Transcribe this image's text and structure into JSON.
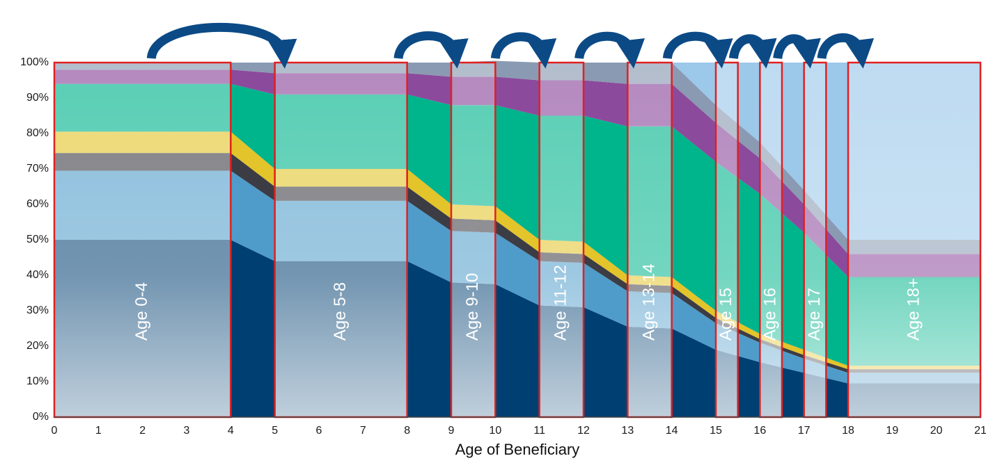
{
  "chart_data": {
    "type": "area",
    "title": "",
    "xlabel": "Age of Beneficiary",
    "ylabel": "",
    "xlim": [
      0,
      21
    ],
    "ylim": [
      0,
      100
    ],
    "x_ticks": [
      "0",
      "1",
      "2",
      "3",
      "4",
      "5",
      "6",
      "7",
      "8",
      "9",
      "10",
      "11",
      "12",
      "13",
      "14",
      "15",
      "16",
      "17",
      "18",
      "19",
      "20",
      "21"
    ],
    "y_ticks": [
      "0%",
      "10%",
      "20%",
      "30%",
      "40%",
      "50%",
      "60%",
      "70%",
      "80%",
      "90%",
      "100%"
    ],
    "grid": false,
    "stacked": true,
    "x": [
      0,
      4,
      5,
      8,
      9,
      10,
      11,
      12,
      13,
      14,
      15,
      16,
      17,
      18,
      21
    ],
    "series": [
      {
        "color": "#003f72",
        "values": [
          50,
          50,
          44,
          44,
          38,
          37.5,
          31.5,
          31,
          25.5,
          25,
          19,
          15.5,
          12.5,
          9.5,
          9.5
        ]
      },
      {
        "color": "#4f9cca",
        "values": [
          19.5,
          19.5,
          17,
          17,
          14.5,
          14.5,
          12.5,
          12.5,
          10,
          10,
          7.5,
          5.5,
          4,
          3,
          3
        ]
      },
      {
        "color": "#3c3c44",
        "values": [
          5,
          5,
          4,
          4,
          3.5,
          3.5,
          2.5,
          2.5,
          2,
          2,
          1.5,
          1,
          1,
          1,
          1
        ]
      },
      {
        "color": "#e3c42a",
        "values": [
          6,
          6,
          5,
          5,
          4,
          4,
          3.5,
          3.5,
          2.5,
          2.5,
          2,
          1.5,
          1.5,
          1,
          1
        ]
      },
      {
        "color": "#00b48c",
        "values": [
          13.5,
          13.5,
          21,
          21,
          28,
          28.5,
          35,
          35.5,
          42,
          42.5,
          42,
          39.5,
          33,
          25,
          25
        ]
      },
      {
        "color": "#8c4a9c",
        "values": [
          4,
          4,
          6,
          6,
          8,
          8,
          10,
          10,
          12,
          12,
          11,
          10,
          8,
          6.5,
          6.5
        ]
      },
      {
        "color": "#8a9ab2",
        "values": [
          2,
          2,
          3,
          3,
          4,
          4.5,
          5,
          5,
          6,
          6,
          5,
          4.5,
          4,
          4,
          4
        ]
      },
      {
        "color": "#9cc8ea",
        "values": [
          0,
          0,
          0,
          0,
          0,
          0,
          0,
          0,
          0,
          0,
          12,
          22.5,
          36,
          50,
          50
        ]
      }
    ],
    "bands": [
      {
        "label": "Age 0-4",
        "from": 0,
        "to": 4
      },
      {
        "label": "Age 5-8",
        "from": 5,
        "to": 8
      },
      {
        "label": "Age 9-10",
        "from": 9,
        "to": 10
      },
      {
        "label": "Age 11-12",
        "from": 11,
        "to": 12
      },
      {
        "label": "Age 13-14",
        "from": 13,
        "to": 14
      },
      {
        "label": "Age 15",
        "from": 15,
        "to": 15.5
      },
      {
        "label": "Age 16",
        "from": 16,
        "to": 16.5
      },
      {
        "label": "Age 17",
        "from": 17,
        "to": 17.5
      },
      {
        "label": "Age 18+",
        "from": 18,
        "to": 21
      }
    ],
    "arrows": [
      {
        "from": 2.2,
        "to": 5.2
      },
      {
        "from": 7.8,
        "to": 9.1
      },
      {
        "from": 10,
        "to": 11.1
      },
      {
        "from": 11.9,
        "to": 13.1
      },
      {
        "from": 13.9,
        "to": 15.1
      },
      {
        "from": 15.4,
        "to": 16.1
      },
      {
        "from": 16.4,
        "to": 17.1
      },
      {
        "from": 17.4,
        "to": 18.3
      }
    ],
    "colors": {
      "band_border": "#e02020",
      "band_tint": "#ffffff",
      "arrow": "#0c4a86",
      "axis": "#444444"
    }
  }
}
